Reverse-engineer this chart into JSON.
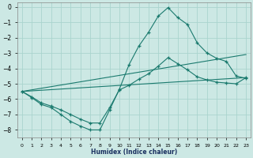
{
  "xlabel": "Humidex (Indice chaleur)",
  "background_color": "#cce8e4",
  "grid_color": "#aad4ce",
  "line_color": "#1a7a6e",
  "xlim": [
    -0.5,
    23.5
  ],
  "ylim": [
    -8.5,
    0.3
  ],
  "yticks": [
    0,
    -1,
    -2,
    -3,
    -4,
    -5,
    -6,
    -7,
    -8
  ],
  "xticks": [
    0,
    1,
    2,
    3,
    4,
    5,
    6,
    7,
    8,
    9,
    10,
    11,
    12,
    13,
    14,
    15,
    16,
    17,
    18,
    19,
    20,
    21,
    22,
    23
  ],
  "line1_x": [
    0,
    1,
    2,
    3,
    4,
    5,
    6,
    7,
    8,
    9,
    10,
    11,
    12,
    13,
    14,
    15,
    16,
    17,
    18,
    19,
    20,
    21,
    22,
    23
  ],
  "line1_y": [
    -5.5,
    -5.9,
    -6.35,
    -6.55,
    -7.0,
    -7.45,
    -7.75,
    -8.0,
    -8.0,
    -6.7,
    -5.35,
    -3.75,
    -2.55,
    -1.65,
    -0.6,
    -0.05,
    -0.7,
    -1.15,
    -2.35,
    -3.0,
    -3.35,
    -3.55,
    -4.5,
    -4.65
  ],
  "line2_x": [
    0,
    1,
    2,
    3,
    4,
    5,
    6,
    7,
    8,
    9,
    10,
    11,
    12,
    13,
    14,
    15,
    16,
    17,
    18,
    19,
    20,
    21,
    22,
    23
  ],
  "line2_y": [
    -5.5,
    -5.85,
    -6.25,
    -6.45,
    -6.7,
    -7.0,
    -7.3,
    -7.55,
    -7.55,
    -6.55,
    -5.4,
    -5.1,
    -4.7,
    -4.35,
    -3.85,
    -3.3,
    -3.7,
    -4.1,
    -4.55,
    -4.75,
    -4.9,
    -4.95,
    -5.0,
    -4.6
  ],
  "line3_x": [
    0,
    23
  ],
  "line3_y": [
    -5.5,
    -3.1
  ],
  "line4_x": [
    0,
    23
  ],
  "line4_y": [
    -5.5,
    -4.6
  ]
}
